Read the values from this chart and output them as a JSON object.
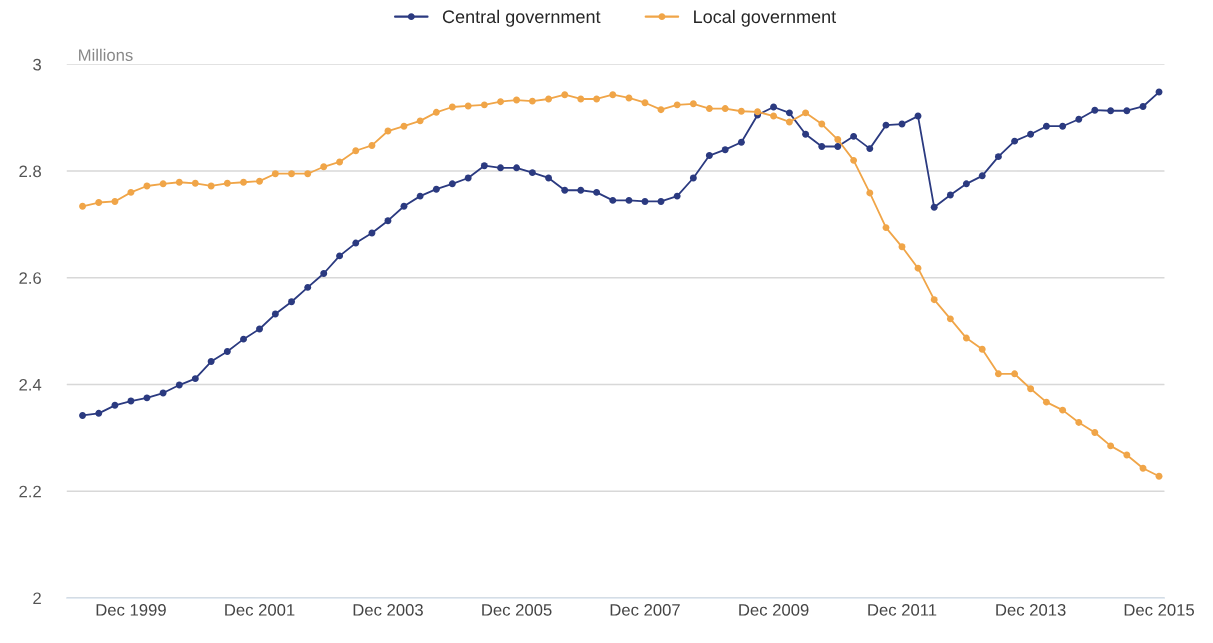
{
  "chart_data": {
    "type": "line",
    "ylabel": "Millions",
    "x": [
      "1999-03",
      "1999-06",
      "1999-09",
      "1999-12",
      "2000-03",
      "2000-06",
      "2000-09",
      "2000-12",
      "2001-03",
      "2001-06",
      "2001-09",
      "2001-12",
      "2002-03",
      "2002-06",
      "2002-09",
      "2002-12",
      "2003-03",
      "2003-06",
      "2003-09",
      "2003-12",
      "2004-03",
      "2004-06",
      "2004-09",
      "2004-12",
      "2005-03",
      "2005-06",
      "2005-09",
      "2005-12",
      "2006-03",
      "2006-06",
      "2006-09",
      "2006-12",
      "2007-03",
      "2007-06",
      "2007-09",
      "2007-12",
      "2008-03",
      "2008-06",
      "2008-09",
      "2008-12",
      "2009-03",
      "2009-06",
      "2009-09",
      "2009-12",
      "2010-03",
      "2010-06",
      "2010-09",
      "2010-12",
      "2011-03",
      "2011-06",
      "2011-09",
      "2011-12",
      "2012-03",
      "2012-06",
      "2012-09",
      "2012-12",
      "2013-03",
      "2013-06",
      "2013-09",
      "2013-12",
      "2014-03",
      "2014-06",
      "2014-09",
      "2014-12",
      "2015-03",
      "2015-06",
      "2015-09",
      "2015-12"
    ],
    "series": [
      {
        "name": "Central government",
        "color": "#2b3a80",
        "values": [
          2.342,
          2.346,
          2.361,
          2.369,
          2.375,
          2.384,
          2.399,
          2.411,
          2.443,
          2.462,
          2.485,
          2.504,
          2.532,
          2.555,
          2.582,
          2.608,
          2.641,
          2.665,
          2.684,
          2.707,
          2.734,
          2.753,
          2.766,
          2.776,
          2.787,
          2.81,
          2.806,
          2.806,
          2.797,
          2.787,
          2.764,
          2.764,
          2.76,
          2.745,
          2.745,
          2.743,
          2.743,
          2.753,
          2.787,
          2.829,
          2.84,
          2.854,
          2.905,
          2.92,
          2.909,
          2.869,
          2.846,
          2.846,
          2.865,
          2.842,
          2.886,
          2.888,
          2.903,
          2.732,
          2.755,
          2.776,
          2.791,
          2.827,
          2.856,
          2.869,
          2.884,
          2.884,
          2.897,
          2.914,
          2.913,
          2.913,
          2.921,
          2.948
        ]
      },
      {
        "name": "Local government",
        "color": "#f0a548",
        "values": [
          2.734,
          2.741,
          2.743,
          2.76,
          2.772,
          2.776,
          2.779,
          2.777,
          2.772,
          2.777,
          2.779,
          2.781,
          2.795,
          2.795,
          2.795,
          2.808,
          2.817,
          2.838,
          2.848,
          2.875,
          2.884,
          2.894,
          2.91,
          2.92,
          2.922,
          2.924,
          2.93,
          2.933,
          2.931,
          2.935,
          2.943,
          2.935,
          2.935,
          2.943,
          2.937,
          2.928,
          2.915,
          2.924,
          2.926,
          2.917,
          2.917,
          2.912,
          2.911,
          2.903,
          2.892,
          2.909,
          2.888,
          2.859,
          2.82,
          2.759,
          2.694,
          2.658,
          2.618,
          2.559,
          2.523,
          2.487,
          2.466,
          2.42,
          2.42,
          2.392,
          2.367,
          2.352,
          2.329,
          2.31,
          2.285,
          2.268,
          2.243,
          2.228
        ]
      }
    ],
    "xlim": [
      "1998-12",
      "2016-01"
    ],
    "xticks": [
      {
        "value": "1999-12",
        "label": "Dec 1999"
      },
      {
        "value": "2001-12",
        "label": "Dec 2001"
      },
      {
        "value": "2003-12",
        "label": "Dec 2003"
      },
      {
        "value": "2005-12",
        "label": "Dec 2005"
      },
      {
        "value": "2007-12",
        "label": "Dec 2007"
      },
      {
        "value": "2009-12",
        "label": "Dec 2009"
      },
      {
        "value": "2011-12",
        "label": "Dec 2011"
      },
      {
        "value": "2013-12",
        "label": "Dec 2013"
      },
      {
        "value": "2015-12",
        "label": "Dec 2015"
      }
    ],
    "ylim": [
      2,
      3
    ],
    "yticks": [
      2,
      2.2,
      2.4,
      2.6,
      2.8,
      3
    ],
    "grid": "y",
    "legend": "top",
    "marker": "circle",
    "line_style": "solid"
  }
}
